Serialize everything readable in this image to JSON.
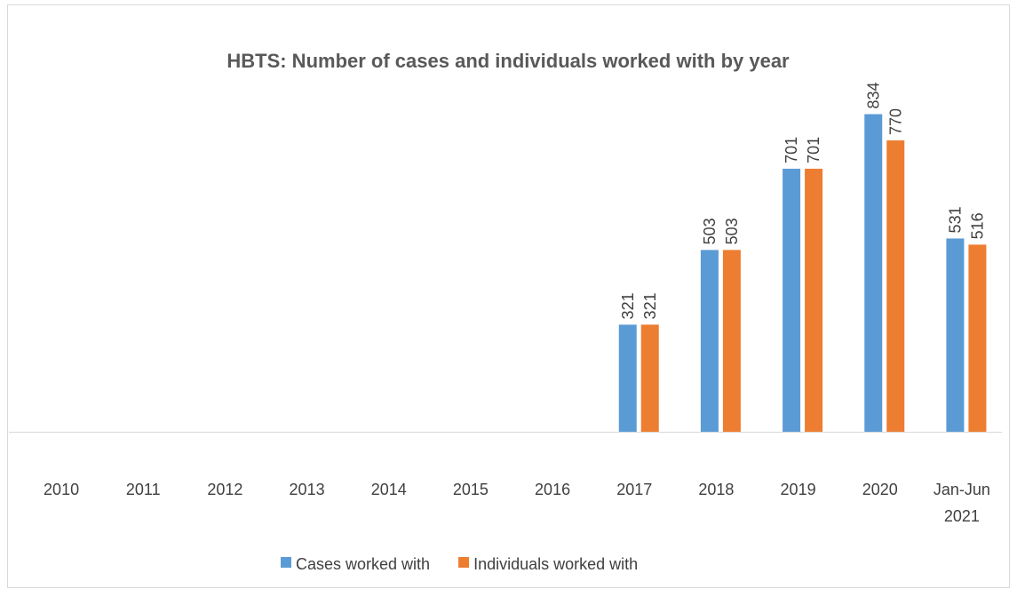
{
  "chart_data": {
    "type": "bar",
    "title": "HBTS: Number of cases and individuals worked with by year",
    "categories": [
      "2010",
      "2011",
      "2012",
      "2013",
      "2014",
      "2015",
      "2016",
      "2017",
      "2018",
      "2019",
      "2020",
      "Jan-Jun 2021"
    ],
    "series": [
      {
        "name": "Cases worked with",
        "color": "#5b9bd5",
        "values": [
          null,
          null,
          null,
          null,
          null,
          null,
          null,
          321,
          503,
          701,
          834,
          531
        ]
      },
      {
        "name": "Individuals worked with",
        "color": "#ed7d31",
        "values": [
          null,
          null,
          null,
          null,
          null,
          null,
          null,
          321,
          503,
          701,
          770,
          516
        ]
      }
    ],
    "ylim": [
      60,
      900
    ],
    "legend": "bottom"
  }
}
